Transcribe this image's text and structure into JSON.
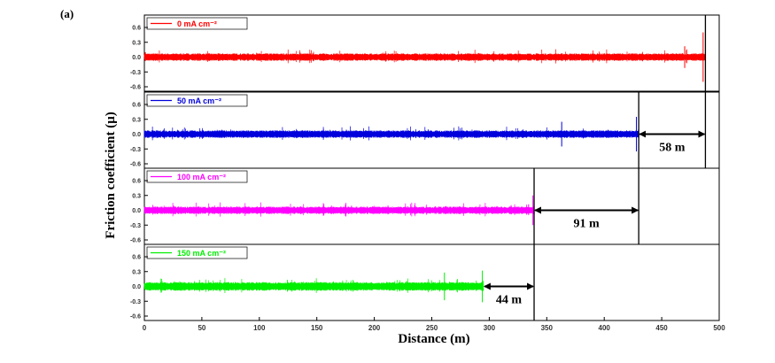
{
  "panel_label": "(a)",
  "chart_data": {
    "type": "line",
    "xlabel": "Distance (m)",
    "ylabel": "Friction coefficient (μ)",
    "xlim": [
      0,
      500
    ],
    "ylim": [
      -0.6,
      0.6
    ],
    "x_ticks": [
      "0",
      "50",
      "100",
      "150",
      "200",
      "250",
      "300",
      "350",
      "400",
      "450",
      "500"
    ],
    "y_ticks": [
      "0.6",
      "0.3",
      "0.0",
      "-0.3",
      "-0.6"
    ],
    "grid": false,
    "legend_placement": "top-left",
    "series": [
      {
        "name": "0 mA cm⁻²",
        "color": "#ff0000",
        "end_distance": 488,
        "amplitude": 0.06,
        "spikes": [
          [
            470,
            0.22
          ],
          [
            486,
            0.5
          ]
        ]
      },
      {
        "name": "50 mA cm⁻²",
        "color": "#0000dd",
        "end_distance": 430,
        "amplitude": 0.06,
        "spikes": [
          [
            363,
            0.25
          ],
          [
            428,
            0.35
          ]
        ]
      },
      {
        "name": "100 mA cm⁻²",
        "color": "#ff00ff",
        "end_distance": 339,
        "amplitude": 0.06,
        "spikes": [
          [
            175,
            0.12
          ],
          [
            338,
            0.3
          ]
        ]
      },
      {
        "name": "150 mA cm⁻²",
        "color": "#00ee00",
        "end_distance": 295,
        "amplitude": 0.07,
        "spikes": [
          [
            261,
            0.28
          ],
          [
            294,
            0.32
          ]
        ]
      }
    ],
    "annotations": [
      {
        "label": "58 m",
        "panel": 1,
        "from": 430,
        "to": 488
      },
      {
        "label": "91 m",
        "panel": 2,
        "from": 339,
        "to": 430
      },
      {
        "label": "44 m",
        "panel": 3,
        "from": 295,
        "to": 339
      }
    ]
  }
}
